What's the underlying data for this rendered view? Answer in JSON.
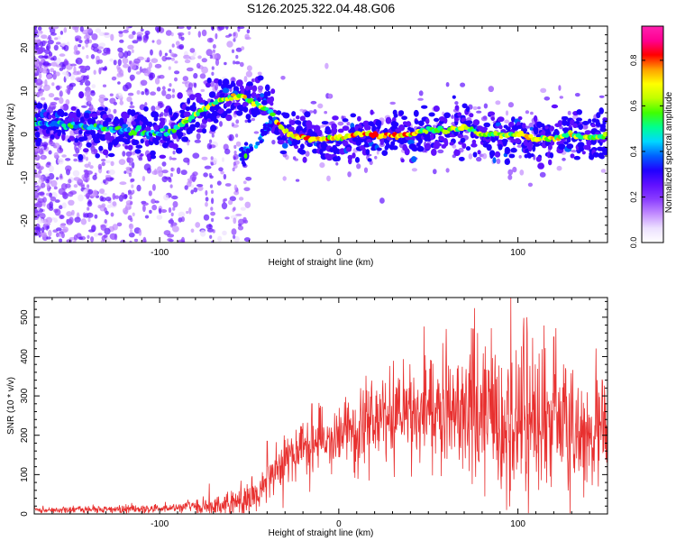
{
  "title": "S126.2025.322.04.48.G06",
  "chart_data": [
    {
      "type": "heatmap",
      "name": "spectrogram",
      "xlabel": "Height of straight line (km)",
      "ylabel": "Frequency (Hz)",
      "xlim": [
        -170,
        150
      ],
      "ylim": [
        -25,
        25
      ],
      "xticks": [
        -100,
        0,
        100
      ],
      "yticks": [
        -20,
        -10,
        0,
        10,
        20
      ],
      "colorbar": {
        "label": "Normalized spectral amplitude",
        "range": [
          0,
          0.95
        ],
        "ticks": [
          "0.0",
          "0.2",
          "0.4",
          "0.6",
          "0.8"
        ],
        "colors": [
          "#ffffff",
          "#ece0ff",
          "#c28cff",
          "#8a3cff",
          "#6010ff",
          "#2000ff",
          "#0060ff",
          "#00d8ff",
          "#00ff90",
          "#40ff00",
          "#c0ff00",
          "#ffff00",
          "#ffa000",
          "#ff0000",
          "#ff0090",
          "#ff20b0"
        ]
      },
      "ridge": {
        "x": [
          -170,
          -150,
          -130,
          -110,
          -95,
          -85,
          -75,
          -65,
          -55,
          -45,
          -38,
          -33,
          -28,
          -20,
          -10,
          0,
          10,
          20,
          30,
          40,
          50,
          60,
          70,
          80,
          90,
          100,
          110,
          120,
          130,
          140,
          150
        ],
        "y": [
          3,
          2,
          1.5,
          0.5,
          0,
          3,
          6,
          8,
          9,
          7,
          5,
          2,
          0,
          -1,
          -1,
          -1,
          0,
          0,
          -0.5,
          0,
          1,
          1,
          1.5,
          0,
          0,
          0,
          -1,
          -1,
          0,
          -1,
          0
        ]
      },
      "branch": {
        "x": [
          -55,
          -48,
          -42,
          -36
        ],
        "y": [
          -5,
          -3,
          0,
          4
        ]
      }
    },
    {
      "type": "line",
      "name": "snr",
      "xlabel": "Height of straight line (km)",
      "ylabel": "SNR (10 * v/v)",
      "xlim": [
        -170,
        150
      ],
      "ylim": [
        0,
        550
      ],
      "xticks": [
        -100,
        0,
        100
      ],
      "yticks": [
        0,
        100,
        200,
        300,
        400,
        500
      ],
      "color": "#e8302f",
      "trend": {
        "x": [
          -170,
          -120,
          -90,
          -70,
          -55,
          -45,
          -35,
          -20,
          0,
          20,
          40,
          60,
          80,
          100,
          120,
          140,
          150
        ],
        "y": [
          10,
          12,
          15,
          20,
          30,
          60,
          110,
          160,
          200,
          240,
          260,
          260,
          250,
          240,
          230,
          220,
          220
        ]
      },
      "spread": {
        "x": [
          -170,
          -90,
          -60,
          -40,
          -20,
          0,
          30,
          60,
          80,
          100,
          130,
          150
        ],
        "y": [
          6,
          10,
          25,
          50,
          60,
          60,
          80,
          120,
          150,
          180,
          150,
          140
        ]
      },
      "peaks": [
        {
          "x": -40,
          "y": 185
        },
        {
          "x": -15,
          "y": 280
        },
        {
          "x": 60,
          "y": 470
        },
        {
          "x": 75,
          "y": 470
        },
        {
          "x": 96,
          "y": 550
        },
        {
          "x": 105,
          "y": 500
        },
        {
          "x": 120,
          "y": 450
        }
      ]
    }
  ]
}
